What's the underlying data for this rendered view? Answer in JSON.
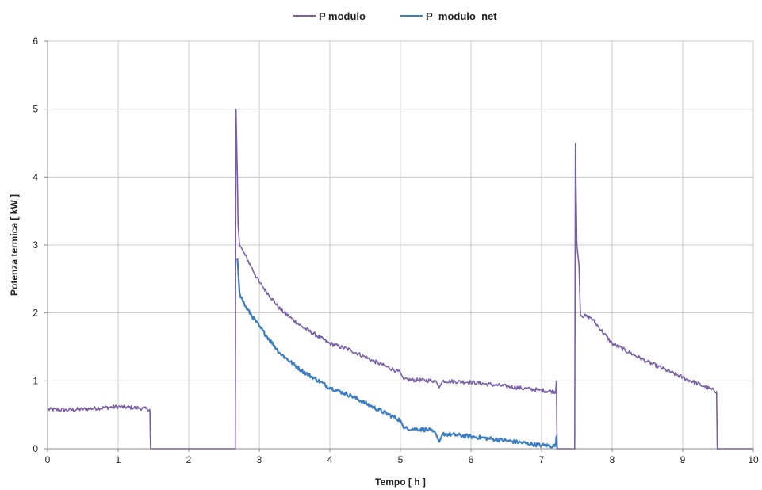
{
  "chart_data": {
    "type": "line",
    "title": "",
    "xlabel": "Tempo  [ h ]",
    "ylabel": "Potenza termica  [ kW ]",
    "xlim": [
      0,
      10
    ],
    "ylim": [
      0,
      6
    ],
    "x_ticks": [
      0,
      1,
      2,
      3,
      4,
      5,
      6,
      7,
      8,
      9,
      10
    ],
    "y_ticks": [
      0,
      1,
      2,
      3,
      4,
      5,
      6
    ],
    "grid": true,
    "legend_position": "top-center",
    "series": [
      {
        "name": "P modulo",
        "color": "#7b5fa6",
        "points": [
          [
            0,
            0.58
          ],
          [
            0.3,
            0.57
          ],
          [
            0.6,
            0.59
          ],
          [
            1.0,
            0.62
          ],
          [
            1.3,
            0.6
          ],
          [
            1.45,
            0.58
          ],
          [
            1.46,
            0.0
          ],
          [
            2.66,
            0.0
          ],
          [
            2.67,
            5.0
          ],
          [
            2.69,
            4.0
          ],
          [
            2.7,
            3.3
          ],
          [
            2.72,
            3.0
          ],
          [
            2.8,
            2.85
          ],
          [
            3.0,
            2.45
          ],
          [
            3.3,
            2.05
          ],
          [
            3.6,
            1.8
          ],
          [
            4.0,
            1.55
          ],
          [
            4.3,
            1.45
          ],
          [
            4.6,
            1.3
          ],
          [
            5.0,
            1.12
          ],
          [
            5.05,
            1.02
          ],
          [
            5.5,
            1.0
          ],
          [
            5.55,
            0.9
          ],
          [
            5.6,
            1.0
          ],
          [
            6.0,
            0.98
          ],
          [
            6.5,
            0.92
          ],
          [
            7.0,
            0.86
          ],
          [
            7.2,
            0.84
          ],
          [
            7.21,
            1.0
          ],
          [
            7.22,
            0.0
          ],
          [
            7.47,
            0.0
          ],
          [
            7.48,
            4.5
          ],
          [
            7.5,
            3.0
          ],
          [
            7.53,
            2.7
          ],
          [
            7.55,
            1.97
          ],
          [
            7.7,
            1.93
          ],
          [
            8.0,
            1.55
          ],
          [
            8.5,
            1.28
          ],
          [
            9.0,
            1.05
          ],
          [
            9.3,
            0.92
          ],
          [
            9.48,
            0.84
          ],
          [
            9.49,
            0.0
          ],
          [
            10.0,
            0.0
          ]
        ]
      },
      {
        "name": "P_modulo_net",
        "color": "#3d7ec1",
        "points": [
          [
            2.69,
            2.8
          ],
          [
            2.72,
            2.3
          ],
          [
            2.8,
            2.1
          ],
          [
            3.0,
            1.8
          ],
          [
            3.3,
            1.4
          ],
          [
            3.6,
            1.15
          ],
          [
            4.0,
            0.9
          ],
          [
            4.3,
            0.78
          ],
          [
            4.6,
            0.62
          ],
          [
            5.0,
            0.42
          ],
          [
            5.05,
            0.3
          ],
          [
            5.4,
            0.28
          ],
          [
            5.5,
            0.22
          ],
          [
            5.55,
            0.1
          ],
          [
            5.6,
            0.22
          ],
          [
            6.0,
            0.18
          ],
          [
            6.5,
            0.12
          ],
          [
            7.0,
            0.05
          ],
          [
            7.2,
            0.04
          ],
          [
            7.21,
            0.18
          ],
          [
            7.22,
            0.0
          ]
        ]
      }
    ]
  }
}
